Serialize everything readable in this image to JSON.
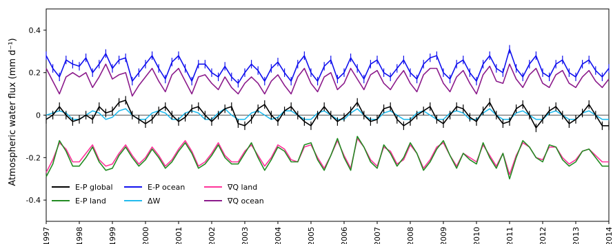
{
  "chart_data": {
    "type": "line",
    "title": "",
    "xlabel": "",
    "ylabel": "Atmospheric water flux (mm d⁻¹)",
    "xlim": [
      1997,
      2014
    ],
    "ylim": [
      -0.5,
      0.5
    ],
    "x_ticks": [
      1997,
      1998,
      1999,
      2000,
      2001,
      2002,
      2003,
      2004,
      2005,
      2006,
      2007,
      2008,
      2009,
      2010,
      2011,
      2012,
      2013,
      2014
    ],
    "x_tick_labels": [
      "1997",
      "1998",
      "1999",
      "2000",
      "2001",
      "2002",
      "2003",
      "2004",
      "2005",
      "2006",
      "2007",
      "2008",
      "2009",
      "2010",
      "2011",
      "2012",
      "2013",
      "2014"
    ],
    "y_ticks": [
      -0.4,
      -0.2,
      0,
      0.2,
      0.4
    ],
    "y_tick_labels": [
      "-0.4",
      "-0.2",
      "0",
      "0.2",
      "0.4"
    ],
    "zero_line": true,
    "grid": false,
    "legend_position": "lower-left",
    "x": [
      1997.0,
      1997.2,
      1997.4,
      1997.6,
      1997.8,
      1998.0,
      1998.2,
      1998.4,
      1998.6,
      1998.8,
      1999.0,
      1999.2,
      1999.4,
      1999.6,
      1999.8,
      2000.0,
      2000.2,
      2000.4,
      2000.6,
      2000.8,
      2001.0,
      2001.2,
      2001.4,
      2001.6,
      2001.8,
      2002.0,
      2002.2,
      2002.4,
      2002.6,
      2002.8,
      2003.0,
      2003.2,
      2003.4,
      2003.6,
      2003.8,
      2004.0,
      2004.2,
      2004.4,
      2004.6,
      2004.8,
      2005.0,
      2005.2,
      2005.4,
      2005.6,
      2005.8,
      2006.0,
      2006.2,
      2006.4,
      2006.6,
      2006.8,
      2007.0,
      2007.2,
      2007.4,
      2007.6,
      2007.8,
      2008.0,
      2008.2,
      2008.4,
      2008.6,
      2008.8,
      2009.0,
      2009.2,
      2009.4,
      2009.6,
      2009.8,
      2010.0,
      2010.2,
      2010.4,
      2010.6,
      2010.8,
      2011.0,
      2011.2,
      2011.4,
      2011.6,
      2011.8,
      2012.0,
      2012.2,
      2012.4,
      2012.6,
      2012.8,
      2013.0,
      2013.2,
      2013.4,
      2013.6,
      2013.8,
      2014.0
    ],
    "series": [
      {
        "name": "E-P global",
        "color": "#000000",
        "error_bars": true,
        "values": [
          -0.02,
          0.0,
          0.04,
          0.0,
          -0.03,
          -0.02,
          0.0,
          -0.02,
          0.04,
          0.01,
          0.02,
          0.06,
          0.07,
          0.0,
          -0.02,
          -0.04,
          -0.02,
          0.02,
          0.04,
          0.0,
          -0.03,
          -0.01,
          0.03,
          0.04,
          0.0,
          -0.03,
          0.0,
          0.03,
          0.04,
          -0.04,
          -0.05,
          -0.02,
          0.03,
          0.05,
          0.0,
          -0.03,
          0.02,
          0.04,
          0.0,
          -0.03,
          -0.05,
          0.0,
          0.04,
          0.0,
          -0.03,
          -0.01,
          0.02,
          0.06,
          0.0,
          -0.03,
          -0.02,
          0.03,
          0.04,
          -0.02,
          -0.05,
          -0.03,
          0.0,
          0.02,
          0.04,
          -0.02,
          -0.04,
          0.0,
          0.04,
          0.03,
          -0.01,
          -0.03,
          0.02,
          0.06,
          0.0,
          -0.04,
          -0.03,
          0.03,
          0.05,
          0.0,
          -0.06,
          -0.02,
          0.02,
          0.04,
          0.0,
          -0.04,
          -0.02,
          0.01,
          0.05,
          0.0,
          -0.05,
          -0.05
        ]
      },
      {
        "name": "E-P land",
        "color": "#228b22",
        "error_bars": false,
        "values": [
          -0.29,
          -0.23,
          -0.12,
          -0.17,
          -0.24,
          -0.24,
          -0.2,
          -0.15,
          -0.22,
          -0.26,
          -0.25,
          -0.19,
          -0.15,
          -0.2,
          -0.24,
          -0.21,
          -0.16,
          -0.2,
          -0.25,
          -0.22,
          -0.17,
          -0.13,
          -0.18,
          -0.25,
          -0.23,
          -0.19,
          -0.14,
          -0.2,
          -0.23,
          -0.23,
          -0.18,
          -0.13,
          -0.2,
          -0.26,
          -0.21,
          -0.15,
          -0.17,
          -0.22,
          -0.22,
          -0.14,
          -0.13,
          -0.21,
          -0.26,
          -0.19,
          -0.11,
          -0.2,
          -0.26,
          -0.1,
          -0.15,
          -0.22,
          -0.25,
          -0.14,
          -0.18,
          -0.24,
          -0.2,
          -0.13,
          -0.18,
          -0.26,
          -0.22,
          -0.16,
          -0.12,
          -0.19,
          -0.25,
          -0.18,
          -0.21,
          -0.23,
          -0.13,
          -0.2,
          -0.25,
          -0.18,
          -0.3,
          -0.2,
          -0.12,
          -0.15,
          -0.2,
          -0.22,
          -0.14,
          -0.15,
          -0.21,
          -0.24,
          -0.22,
          -0.17,
          -0.16,
          -0.2,
          -0.24,
          -0.24
        ]
      },
      {
        "name": "E-P ocean",
        "color": "#1010ee",
        "error_bars": true,
        "values": [
          0.28,
          0.22,
          0.18,
          0.26,
          0.24,
          0.23,
          0.27,
          0.2,
          0.24,
          0.29,
          0.22,
          0.26,
          0.27,
          0.16,
          0.2,
          0.24,
          0.28,
          0.22,
          0.17,
          0.25,
          0.28,
          0.22,
          0.16,
          0.24,
          0.24,
          0.2,
          0.18,
          0.23,
          0.18,
          0.15,
          0.2,
          0.24,
          0.21,
          0.16,
          0.22,
          0.25,
          0.2,
          0.16,
          0.24,
          0.28,
          0.2,
          0.16,
          0.23,
          0.26,
          0.17,
          0.2,
          0.27,
          0.22,
          0.17,
          0.24,
          0.26,
          0.2,
          0.18,
          0.22,
          0.26,
          0.2,
          0.17,
          0.24,
          0.27,
          0.28,
          0.2,
          0.17,
          0.24,
          0.26,
          0.2,
          0.16,
          0.24,
          0.28,
          0.22,
          0.2,
          0.31,
          0.22,
          0.18,
          0.24,
          0.28,
          0.2,
          0.18,
          0.24,
          0.26,
          0.2,
          0.18,
          0.24,
          0.26,
          0.21,
          0.18,
          0.22
        ]
      },
      {
        "name": "ΔW",
        "color": "#22bbee",
        "error_bars": false,
        "values": [
          0.0,
          0.01,
          0.02,
          0.01,
          -0.02,
          -0.02,
          0.0,
          0.02,
          0.01,
          -0.02,
          -0.01,
          0.02,
          0.03,
          0.0,
          -0.02,
          -0.02,
          0.01,
          0.02,
          0.01,
          -0.02,
          -0.02,
          0.01,
          0.02,
          0.01,
          -0.02,
          -0.02,
          0.01,
          0.03,
          0.0,
          -0.02,
          -0.02,
          0.01,
          0.02,
          0.0,
          -0.02,
          -0.01,
          0.02,
          0.02,
          0.0,
          -0.02,
          -0.02,
          0.01,
          0.02,
          0.0,
          -0.02,
          -0.02,
          0.01,
          0.03,
          0.0,
          -0.02,
          -0.02,
          0.01,
          0.02,
          0.0,
          -0.02,
          -0.02,
          0.01,
          0.02,
          0.0,
          -0.02,
          -0.02,
          0.01,
          0.02,
          0.01,
          -0.02,
          -0.02,
          0.01,
          0.03,
          0.0,
          -0.02,
          -0.02,
          0.01,
          0.02,
          0.0,
          -0.02,
          -0.02,
          0.01,
          0.02,
          0.0,
          -0.02,
          -0.02,
          0.01,
          0.02,
          0.0,
          -0.02,
          -0.02
        ]
      },
      {
        "name": "∇Q land",
        "color": "#ff3399",
        "error_bars": false,
        "values": [
          -0.27,
          -0.21,
          -0.13,
          -0.16,
          -0.22,
          -0.22,
          -0.18,
          -0.14,
          -0.21,
          -0.24,
          -0.23,
          -0.18,
          -0.14,
          -0.19,
          -0.23,
          -0.2,
          -0.15,
          -0.19,
          -0.24,
          -0.21,
          -0.16,
          -0.12,
          -0.17,
          -0.24,
          -0.22,
          -0.18,
          -0.13,
          -0.19,
          -0.22,
          -0.22,
          -0.17,
          -0.14,
          -0.19,
          -0.24,
          -0.2,
          -0.14,
          -0.16,
          -0.21,
          -0.22,
          -0.15,
          -0.14,
          -0.2,
          -0.25,
          -0.19,
          -0.12,
          -0.19,
          -0.25,
          -0.11,
          -0.15,
          -0.21,
          -0.24,
          -0.15,
          -0.17,
          -0.23,
          -0.21,
          -0.14,
          -0.18,
          -0.25,
          -0.21,
          -0.15,
          -0.13,
          -0.19,
          -0.24,
          -0.18,
          -0.2,
          -0.22,
          -0.14,
          -0.19,
          -0.24,
          -0.18,
          -0.28,
          -0.19,
          -0.13,
          -0.15,
          -0.2,
          -0.21,
          -0.15,
          -0.15,
          -0.2,
          -0.23,
          -0.21,
          -0.17,
          -0.16,
          -0.19,
          -0.22,
          -0.22
        ]
      },
      {
        "name": "∇Q ocean",
        "color": "#8b1a8b",
        "error_bars": false,
        "values": [
          0.22,
          0.16,
          0.1,
          0.18,
          0.2,
          0.18,
          0.2,
          0.13,
          0.18,
          0.24,
          0.17,
          0.19,
          0.2,
          0.09,
          0.14,
          0.18,
          0.22,
          0.16,
          0.11,
          0.19,
          0.22,
          0.16,
          0.1,
          0.18,
          0.19,
          0.15,
          0.12,
          0.18,
          0.13,
          0.1,
          0.15,
          0.18,
          0.15,
          0.1,
          0.16,
          0.19,
          0.14,
          0.1,
          0.18,
          0.22,
          0.15,
          0.11,
          0.18,
          0.2,
          0.12,
          0.15,
          0.22,
          0.17,
          0.12,
          0.19,
          0.21,
          0.15,
          0.12,
          0.17,
          0.21,
          0.15,
          0.11,
          0.19,
          0.22,
          0.22,
          0.15,
          0.11,
          0.18,
          0.21,
          0.15,
          0.1,
          0.19,
          0.23,
          0.16,
          0.15,
          0.24,
          0.17,
          0.13,
          0.19,
          0.22,
          0.15,
          0.13,
          0.19,
          0.21,
          0.15,
          0.13,
          0.18,
          0.21,
          0.16,
          0.13,
          0.17
        ]
      }
    ]
  }
}
